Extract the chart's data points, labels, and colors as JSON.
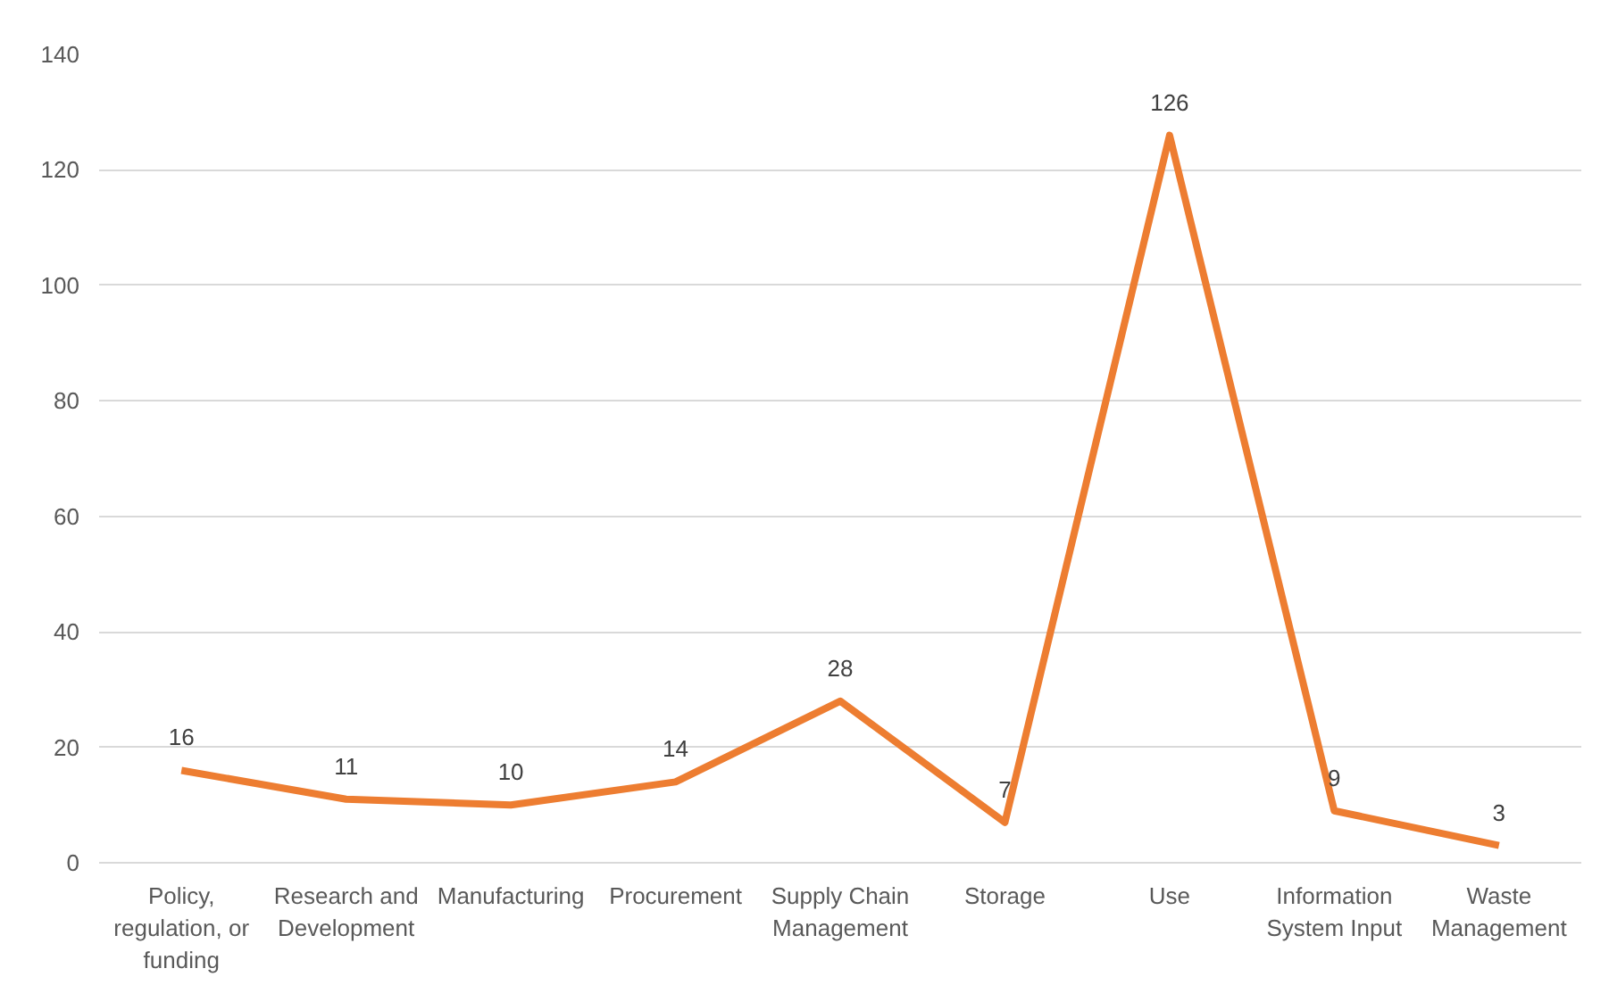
{
  "chart_data": {
    "type": "line",
    "categories": [
      "Policy, regulation, or funding",
      "Research and Development",
      "Manufacturing",
      "Procurement",
      "Supply Chain Management",
      "Storage",
      "Use",
      "Information System Input",
      "Waste Management"
    ],
    "series": [
      {
        "color": "#ed7d31",
        "values": [
          16,
          11,
          10,
          14,
          28,
          7,
          126,
          9,
          3
        ]
      }
    ],
    "ylim": [
      0,
      140
    ],
    "yticks": [
      0,
      20,
      40,
      60,
      80,
      100,
      120,
      140
    ],
    "grid": "y",
    "data_labels": true,
    "marker": "none",
    "line_style": "solid"
  }
}
